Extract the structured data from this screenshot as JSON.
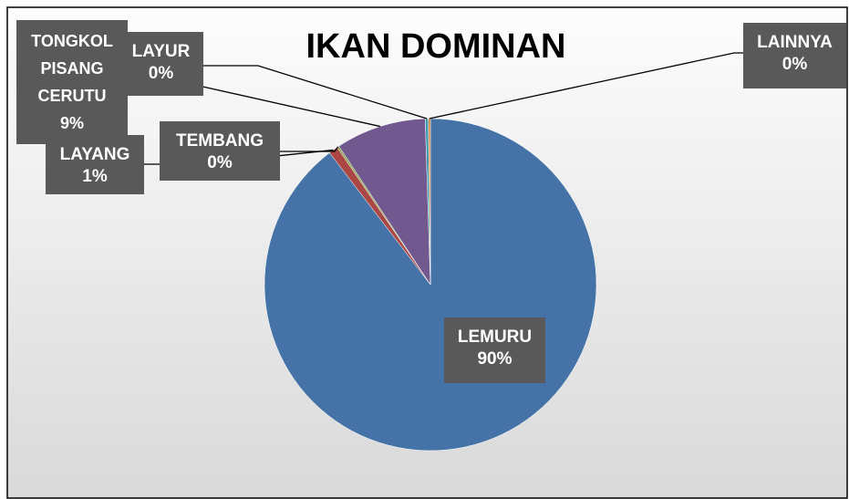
{
  "chart_data": {
    "type": "pie",
    "title": "IKAN DOMINAN",
    "categories": [
      "LEMURU",
      "LAYANG",
      "TEMBANG",
      "TONGKOL PISANG CERUTU",
      "LAYUR",
      "LAINNYA"
    ],
    "values": [
      89.6,
      0.9,
      0.2,
      8.8,
      0.3,
      0.2
    ],
    "value_labels": [
      "90%",
      "1%",
      "0%",
      "9%",
      "0%",
      "0%"
    ],
    "colors": [
      "#4572a7",
      "#aa4643",
      "#89a54e",
      "#71588f",
      "#4198af",
      "#db843d"
    ]
  }
}
